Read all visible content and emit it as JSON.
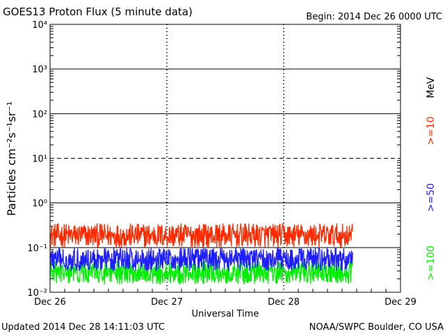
{
  "header": {
    "title": "GOES13 Proton Flux (5 minute data)",
    "begin": "Begin: 2014 Dec 26 0000 UTC"
  },
  "footer": {
    "updated": "Updated 2014 Dec 28 14:11:03 UTC",
    "credit": "NOAA/SWPC Boulder, CO USA"
  },
  "colors": {
    "ge10": "#ff2a00",
    "ge50": "#1e1eff",
    "ge100": "#00ee00",
    "axis": "#000000"
  },
  "chart_data": {
    "type": "line",
    "title": "GOES13 Proton Flux (5 minute data)",
    "xlabel": "Universal Time",
    "ylabel": "Particles cm⁻²s⁻¹sr⁻¹",
    "yscale": "log",
    "ylim": [
      0.01,
      10000
    ],
    "xlim": [
      "2014-12-26",
      "2014-12-29"
    ],
    "x_tick_labels": [
      "Dec 26",
      "Dec 27",
      "Dec 28",
      "Dec 29"
    ],
    "y_tick_labels": [
      "10⁻²",
      "10⁻¹",
      "10⁰",
      "10¹",
      "10²",
      "10³",
      "10⁴"
    ],
    "threshold_line": 10,
    "right_unit": "MeV",
    "series": [
      {
        "name": ">=10",
        "color": "#ff2a00",
        "range": [
          0.1,
          0.35
        ],
        "end": "2014-12-28 14:10"
      },
      {
        "name": ">=50",
        "color": "#1e1eff",
        "range": [
          0.03,
          0.1
        ],
        "end": "2014-12-28 14:10"
      },
      {
        "name": ">=100",
        "color": "#00ee00",
        "range": [
          0.015,
          0.05
        ],
        "end": "2014-12-28 14:10"
      }
    ]
  }
}
